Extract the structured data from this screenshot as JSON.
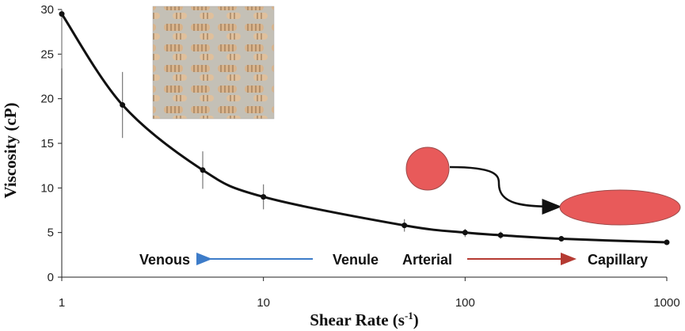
{
  "chart_data": {
    "type": "line",
    "xlabel": "Shear Rate (s",
    "xlabel_superscript": "-1",
    "xlabel_suffix": ")",
    "ylabel": "Viscosity (cP)",
    "xscale": "log",
    "xlim": [
      1,
      1000
    ],
    "ylim": [
      0,
      30
    ],
    "x_ticks": [
      "1",
      "10",
      "100",
      "1000"
    ],
    "y_ticks": [
      "0",
      "5",
      "10",
      "15",
      "20",
      "25",
      "30"
    ],
    "grid": false,
    "series": [
      {
        "x": [
          1,
          2,
          5,
          10,
          50,
          100,
          150,
          300,
          1000
        ],
        "y": [
          29.5,
          19.3,
          12.0,
          9.0,
          5.8,
          5.0,
          4.7,
          4.3,
          3.9
        ],
        "y_err_low": [
          23.4,
          15.6,
          9.9,
          7.6,
          5.1,
          4.5,
          4.3,
          4.0,
          3.7
        ],
        "y_err_high": [
          30.0,
          23.0,
          14.1,
          10.4,
          6.5,
          5.4,
          5.1,
          4.6,
          4.1
        ]
      }
    ],
    "annotations": {
      "venous": "Venous",
      "venule": "Venule",
      "arterial": "Arterial",
      "capillary": "Capillary"
    },
    "colors": {
      "line": "#111111",
      "errorbar": "#777777",
      "arrow_blue": "#3d7cc9",
      "arrow_red": "#b53a32",
      "cell_fill": "#e85a5a",
      "cell_stroke": "#9c4a4a"
    }
  }
}
